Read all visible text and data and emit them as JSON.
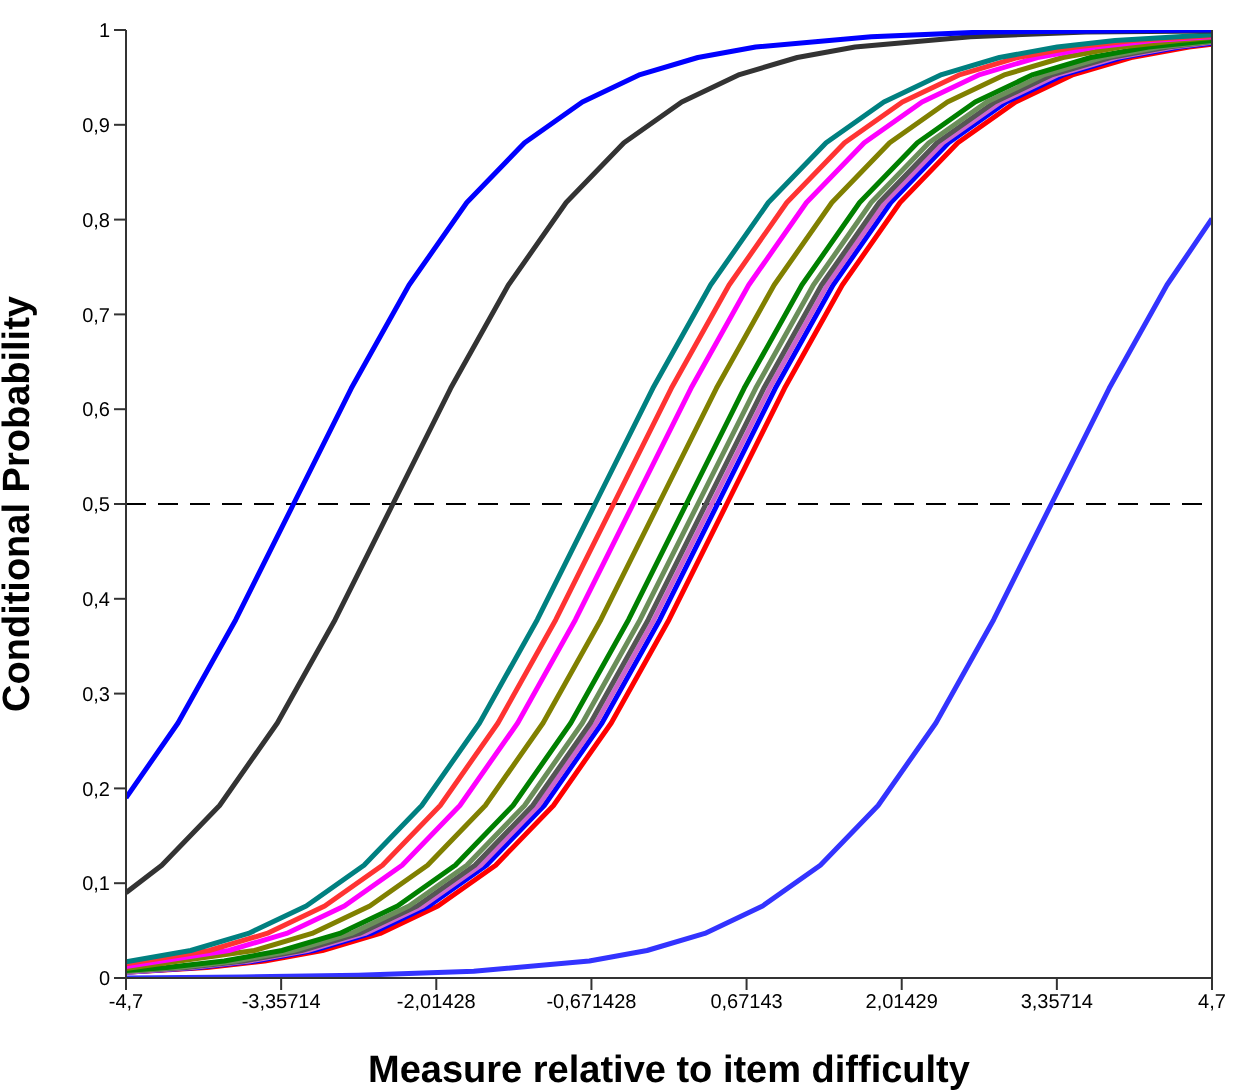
{
  "chart_data": {
    "type": "line",
    "xlabel": "Measure relative to item difficulty",
    "ylabel": "Conditional Probability",
    "xlim": [
      -4.7,
      4.7
    ],
    "ylim": [
      0,
      1
    ],
    "xticks": [
      {
        "value": -4.7,
        "label": "-4,7"
      },
      {
        "value": -3.35714,
        "label": "-3,35714"
      },
      {
        "value": -2.01428,
        "label": "-2,01428"
      },
      {
        "value": -0.671428,
        "label": "-0,671428"
      },
      {
        "value": 0.67143,
        "label": "0,67143"
      },
      {
        "value": 2.01429,
        "label": "2,01429"
      },
      {
        "value": 3.35714,
        "label": "3,35714"
      },
      {
        "value": 4.7,
        "label": "4,7"
      }
    ],
    "yticks": [
      0,
      {
        "value": 0.1,
        "label": "0,1"
      },
      {
        "value": 0.2,
        "label": "0,2"
      },
      {
        "value": 0.3,
        "label": "0,3"
      },
      {
        "value": 0.4,
        "label": "0,4"
      },
      {
        "value": 0.5,
        "label": "0,5"
      },
      {
        "value": 0.6,
        "label": "0,6"
      },
      {
        "value": 0.7,
        "label": "0,7"
      },
      {
        "value": 0.8,
        "label": "0,8"
      },
      {
        "value": 0.9,
        "label": "0,9"
      },
      1
    ],
    "ref_lines": [
      {
        "axis": "y",
        "value": 0.5,
        "color": "#000000",
        "line_style": "dashed"
      }
    ],
    "series": [
      {
        "color": "#0000ff",
        "x": [
          -4.7,
          -4.25,
          -3.75,
          -3.25,
          -2.75,
          -2.25,
          -1.75,
          -1.25,
          -0.75,
          -0.25,
          0.25,
          0.75,
          1.75,
          2.75,
          3.75,
          4.7
        ],
        "values": [
          0.19,
          0.269,
          0.378,
          0.5,
          0.622,
          0.731,
          0.818,
          0.881,
          0.924,
          0.953,
          0.971,
          0.982,
          0.993,
          0.998,
          0.999,
          1.0
        ]
      },
      {
        "color": "#333333",
        "x": [
          -4.7,
          -4.39,
          -3.89,
          -3.39,
          -2.89,
          -2.39,
          -1.89,
          -1.39,
          -0.89,
          -0.39,
          0.11,
          0.61,
          1.11,
          1.61,
          2.61,
          3.61,
          4.7
        ],
        "values": [
          0.09,
          0.119,
          0.182,
          0.269,
          0.378,
          0.5,
          0.622,
          0.731,
          0.818,
          0.881,
          0.924,
          0.953,
          0.971,
          0.982,
          0.993,
          0.998,
          0.999
        ]
      },
      {
        "color": "#008080",
        "x": [
          -4.7,
          -4.14,
          -3.64,
          -3.14,
          -2.64,
          -2.14,
          -1.64,
          -1.14,
          -0.64,
          -0.14,
          0.36,
          0.86,
          1.36,
          1.86,
          2.36,
          2.86,
          3.36,
          3.86,
          4.7
        ],
        "values": [
          0.017,
          0.029,
          0.047,
          0.076,
          0.119,
          0.182,
          0.269,
          0.378,
          0.5,
          0.622,
          0.731,
          0.818,
          0.881,
          0.924,
          0.953,
          0.971,
          0.982,
          0.989,
          0.995
        ]
      },
      {
        "color": "#ff3333",
        "x": [
          -4.7,
          -3.98,
          -3.48,
          -2.98,
          -2.48,
          -1.98,
          -1.48,
          -0.98,
          -0.48,
          0.02,
          0.52,
          1.02,
          1.52,
          2.02,
          2.52,
          3.02,
          3.52,
          4.02,
          4.7
        ],
        "values": [
          0.015,
          0.029,
          0.047,
          0.076,
          0.119,
          0.182,
          0.269,
          0.378,
          0.5,
          0.622,
          0.731,
          0.818,
          0.881,
          0.924,
          0.953,
          0.971,
          0.982,
          0.989,
          0.994
        ]
      },
      {
        "color": "#ff00ff",
        "x": [
          -4.7,
          -3.81,
          -3.31,
          -2.81,
          -2.31,
          -1.81,
          -1.31,
          -0.81,
          -0.31,
          0.19,
          0.69,
          1.19,
          1.69,
          2.19,
          2.69,
          3.19,
          3.69,
          4.19,
          4.7
        ],
        "values": [
          0.012,
          0.029,
          0.047,
          0.076,
          0.119,
          0.182,
          0.269,
          0.378,
          0.5,
          0.622,
          0.731,
          0.818,
          0.881,
          0.924,
          0.953,
          0.971,
          0.982,
          0.989,
          0.993
        ]
      },
      {
        "color": "#808000",
        "x": [
          -4.7,
          -3.59,
          -3.09,
          -2.59,
          -2.09,
          -1.59,
          -1.09,
          -0.59,
          -0.09,
          0.41,
          0.91,
          1.41,
          1.91,
          2.41,
          2.91,
          3.41,
          3.91,
          4.41,
          4.7
        ],
        "values": [
          0.01,
          0.029,
          0.047,
          0.076,
          0.119,
          0.182,
          0.269,
          0.378,
          0.5,
          0.622,
          0.731,
          0.818,
          0.881,
          0.924,
          0.953,
          0.971,
          0.982,
          0.989,
          0.992
        ]
      },
      {
        "color": "#008000",
        "x": [
          -4.7,
          -4.35,
          -3.85,
          -3.35,
          -2.85,
          -2.35,
          -1.85,
          -1.35,
          -0.85,
          -0.35,
          0.15,
          0.65,
          1.15,
          1.65,
          2.15,
          2.65,
          3.15,
          3.65,
          4.15,
          4.7
        ],
        "values": [
          0.008,
          0.011,
          0.018,
          0.029,
          0.047,
          0.076,
          0.119,
          0.182,
          0.269,
          0.378,
          0.5,
          0.622,
          0.731,
          0.818,
          0.881,
          0.924,
          0.953,
          0.971,
          0.982,
          0.989
        ]
      },
      {
        "color": "#6b8e5a",
        "x": [
          -4.7,
          -4.25,
          -3.75,
          -3.25,
          -2.75,
          -2.25,
          -1.75,
          -1.25,
          -0.75,
          -0.25,
          0.25,
          0.75,
          1.25,
          1.75,
          2.25,
          2.75,
          3.25,
          3.75,
          4.25,
          4.7
        ],
        "values": [
          0.007,
          0.011,
          0.018,
          0.029,
          0.047,
          0.076,
          0.119,
          0.182,
          0.269,
          0.378,
          0.5,
          0.622,
          0.731,
          0.818,
          0.881,
          0.924,
          0.953,
          0.971,
          0.982,
          0.988
        ]
      },
      {
        "color": "#555555",
        "x": [
          -4.7,
          -4.18,
          -3.68,
          -3.18,
          -2.68,
          -2.18,
          -1.68,
          -1.18,
          -0.68,
          -0.18,
          0.32,
          0.82,
          1.32,
          1.82,
          2.32,
          2.82,
          3.32,
          3.82,
          4.32,
          4.7
        ],
        "values": [
          0.007,
          0.011,
          0.018,
          0.029,
          0.047,
          0.076,
          0.119,
          0.182,
          0.269,
          0.378,
          0.5,
          0.622,
          0.731,
          0.818,
          0.881,
          0.924,
          0.953,
          0.971,
          0.982,
          0.988
        ]
      },
      {
        "color": "#cc66cc",
        "x": [
          -4.7,
          -4.13,
          -3.63,
          -3.13,
          -2.63,
          -2.13,
          -1.63,
          -1.13,
          -0.63,
          -0.13,
          0.37,
          0.87,
          1.37,
          1.87,
          2.37,
          2.87,
          3.37,
          3.87,
          4.37,
          4.7
        ],
        "values": [
          0.006,
          0.011,
          0.018,
          0.029,
          0.047,
          0.076,
          0.119,
          0.182,
          0.269,
          0.378,
          0.5,
          0.622,
          0.731,
          0.818,
          0.881,
          0.924,
          0.953,
          0.971,
          0.982,
          0.987
        ]
      },
      {
        "color": "#0000ff",
        "x": [
          -4.7,
          -4.08,
          -3.58,
          -3.08,
          -2.58,
          -2.08,
          -1.58,
          -1.08,
          -0.58,
          -0.08,
          0.42,
          0.92,
          1.42,
          1.92,
          2.42,
          2.92,
          3.42,
          3.92,
          4.42,
          4.7
        ],
        "values": [
          0.006,
          0.011,
          0.018,
          0.029,
          0.047,
          0.076,
          0.119,
          0.182,
          0.269,
          0.378,
          0.5,
          0.622,
          0.731,
          0.818,
          0.881,
          0.924,
          0.953,
          0.971,
          0.982,
          0.986
        ]
      },
      {
        "color": "#ff0000",
        "x": [
          -4.7,
          -4.0,
          -3.5,
          -3.0,
          -2.5,
          -2.0,
          -1.5,
          -1.0,
          -0.5,
          0.0,
          0.5,
          1.0,
          1.5,
          2.0,
          2.5,
          3.0,
          3.5,
          4.0,
          4.5,
          4.7
        ],
        "values": [
          0.006,
          0.011,
          0.018,
          0.029,
          0.047,
          0.076,
          0.119,
          0.182,
          0.269,
          0.378,
          0.5,
          0.622,
          0.731,
          0.818,
          0.881,
          0.924,
          0.953,
          0.971,
          0.982,
          0.985
        ]
      },
      {
        "color": "#3333ff",
        "x": [
          -4.7,
          -3.69,
          -2.69,
          -1.69,
          -0.69,
          -0.19,
          0.31,
          0.81,
          1.31,
          1.81,
          2.31,
          2.81,
          3.31,
          3.81,
          4.31,
          4.7
        ],
        "values": [
          0.0,
          0.001,
          0.003,
          0.007,
          0.018,
          0.029,
          0.047,
          0.076,
          0.119,
          0.182,
          0.269,
          0.378,
          0.5,
          0.622,
          0.731,
          0.801
        ]
      }
    ]
  }
}
